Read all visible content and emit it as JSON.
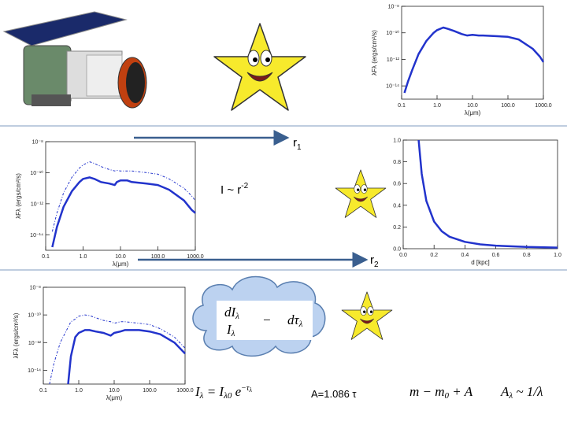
{
  "slide": {
    "r1": {
      "base": "r",
      "sub": "1"
    },
    "law": {
      "base": "I ~ r",
      "sup": "-2"
    },
    "r2": {
      "base": "r",
      "sub": "2"
    },
    "eq_transfer": {
      "num": "dI",
      "num_sub": "λ",
      "den": "I",
      "den_sub": "λ",
      "op": "−",
      "rhs": "dτ",
      "rhs_sub": "λ"
    },
    "eq_atten": {
      "lhs": "I",
      "lhs_sub": "λ",
      "mid": " = I",
      "mid_sub": "λ0",
      "exp_base": " e",
      "exp": "−τ",
      "exp_sub": "λ"
    },
    "eq_A": "A=1.086 τ",
    "eq_mag": {
      "base": "m − m",
      "sub": "0",
      "rest": " + A"
    },
    "eq_law": {
      "base": "A",
      "sub": "λ",
      "rest": " ~ 1/λ"
    }
  },
  "chart_data": [
    {
      "type": "line",
      "xscale": "log",
      "yscale": "log",
      "xlabel": "λ(μm)",
      "ylabel": "λFλ (ergs/cm²/s)",
      "xlim": [
        0.1,
        1000
      ],
      "xticks": [
        0.1,
        {
          "value": 1,
          "label": "1.0"
        },
        {
          "value": 10,
          "label": "10.0"
        },
        {
          "value": 100,
          "label": "100.0"
        },
        {
          "value": 1000,
          "label": "1000.0"
        }
      ],
      "ylim": [
        1e-15,
        1e-08
      ],
      "yticks": [
        {
          "value": 1e-08,
          "label": "10⁻⁸"
        },
        {
          "value": 1e-10,
          "label": "10⁻¹⁰"
        },
        {
          "value": 1e-12,
          "label": "10⁻¹²"
        },
        {
          "value": 1e-14,
          "label": "10⁻¹⁴"
        }
      ],
      "x": [
        0.12,
        0.15,
        0.2,
        0.3,
        0.5,
        0.8,
        1,
        1.5,
        2,
        3,
        5,
        7,
        10,
        15,
        20,
        50,
        100,
        200,
        500,
        800,
        1000
      ],
      "series": [
        {
          "color": "#2233cc",
          "dashed": false,
          "values": [
            3e-15,
            2e-14,
            1.6e-13,
            2.5e-12,
            2.5e-11,
            1e-10,
            1.6e-10,
            2.5e-10,
            2e-10,
            1.4e-10,
            8e-11,
            6.3e-11,
            7e-11,
            6.3e-11,
            6.3e-11,
            5.6e-11,
            5e-11,
            3.2e-11,
            6.3e-12,
            1.6e-12,
            6.3e-13
          ]
        }
      ]
    },
    {
      "type": "line",
      "xscale": "log",
      "yscale": "log",
      "xlabel": "λ(μm)",
      "ylabel": "λFλ (ergs/cm²/s)",
      "xlim": [
        0.1,
        1000
      ],
      "xticks": [
        0.1,
        {
          "value": 1,
          "label": "1.0"
        },
        {
          "value": 10,
          "label": "10.0"
        },
        {
          "value": 100,
          "label": "100.0"
        },
        {
          "value": 1000,
          "label": "1000.0"
        }
      ],
      "ylim": [
        1e-15,
        1e-08
      ],
      "yticks": [
        {
          "value": 1e-08,
          "label": "10⁻⁸"
        },
        {
          "value": 1e-10,
          "label": "10⁻¹⁰"
        },
        {
          "value": 1e-12,
          "label": "10⁻¹²"
        },
        {
          "value": 1e-14,
          "label": "10⁻¹⁴"
        }
      ],
      "x": [
        0.15,
        0.2,
        0.3,
        0.5,
        0.8,
        1,
        1.5,
        2,
        3,
        5,
        7,
        8,
        10,
        15,
        20,
        50,
        100,
        200,
        500,
        800,
        1000
      ],
      "series": [
        {
          "color": "#2233cc",
          "dashed": false,
          "values": [
            1.6e-15,
            3.2e-14,
            6.3e-13,
            6.3e-12,
            2.5e-11,
            4e-11,
            5e-11,
            4e-11,
            2.5e-11,
            2e-11,
            1.6e-11,
            2.5e-11,
            3.2e-11,
            3.2e-11,
            2.5e-11,
            2e-11,
            1.6e-11,
            8e-12,
            1.6e-12,
            4e-13,
            2.5e-13
          ]
        },
        {
          "color": "#2233cc",
          "dashed": true,
          "values": [
            1.6e-14,
            2.5e-13,
            5e-12,
            5e-11,
            2e-10,
            3.2e-10,
            5e-10,
            4e-10,
            2.5e-10,
            1.6e-10,
            1.3e-10,
            1.4e-10,
            1.3e-10,
            1.3e-10,
            1.3e-10,
            1e-10,
            8e-11,
            4e-11,
            1e-11,
            3.2e-12,
            1.6e-12
          ]
        }
      ]
    },
    {
      "type": "line",
      "xscale": "linear",
      "yscale": "linear",
      "xlabel": "d [kpc]",
      "xlim": [
        0,
        1
      ],
      "xticks": [
        {
          "value": 0,
          "label": "0.0"
        },
        0.2,
        0.4,
        0.6,
        0.8,
        {
          "value": 1,
          "label": "1.0"
        }
      ],
      "ylim": [
        0,
        1
      ],
      "yticks": [
        {
          "value": 0,
          "label": "0.0"
        },
        0.2,
        0.4,
        0.6,
        0.8,
        {
          "value": 1,
          "label": "1.0"
        }
      ],
      "x": [
        0.1,
        0.12,
        0.15,
        0.2,
        0.25,
        0.3,
        0.4,
        0.5,
        0.6,
        0.8,
        1.0
      ],
      "series": [
        {
          "color": "#2233cc",
          "dashed": false,
          "values": [
            1,
            0.69,
            0.44,
            0.25,
            0.16,
            0.11,
            0.063,
            0.04,
            0.028,
            0.016,
            0.01
          ]
        }
      ]
    },
    {
      "type": "line",
      "xscale": "log",
      "yscale": "log",
      "xlabel": "λ(μm)",
      "ylabel": "λFλ (ergs/cm²/s)",
      "xlim": [
        0.1,
        1000
      ],
      "xticks": [
        0.1,
        {
          "value": 1,
          "label": "1.0"
        },
        {
          "value": 10,
          "label": "10.0"
        },
        {
          "value": 100,
          "label": "100.0"
        },
        {
          "value": 1000,
          "label": "1000.0"
        }
      ],
      "ylim": [
        1e-15,
        1e-08
      ],
      "yticks": [
        {
          "value": 1e-08,
          "label": "10⁻⁸"
        },
        {
          "value": 1e-10,
          "label": "10⁻¹⁰"
        },
        {
          "value": 1e-12,
          "label": "10⁻¹²"
        },
        {
          "value": 1e-14,
          "label": "10⁻¹⁴"
        }
      ],
      "x": [
        0.15,
        0.2,
        0.3,
        0.5,
        0.6,
        0.8,
        1,
        1.5,
        2,
        3,
        5,
        8,
        10,
        15,
        20,
        50,
        100,
        200,
        500,
        1000
      ],
      "series": [
        {
          "color": "#2233cc",
          "dashed": false,
          "values": [
            null,
            null,
            null,
            1e-15,
            1e-13,
            2.5e-12,
            5e-12,
            8e-12,
            8e-12,
            6.3e-12,
            5e-12,
            3.2e-12,
            5e-12,
            6.3e-12,
            8e-12,
            8e-12,
            6.3e-12,
            4e-12,
            1e-12,
            1.6e-13
          ]
        },
        {
          "color": "#2233cc",
          "dashed": true,
          "values": [
            1e-15,
            3.2e-14,
            1e-12,
            1.3e-11,
            3.2e-11,
            5e-11,
            8e-11,
            1e-10,
            9e-11,
            6.3e-11,
            4e-11,
            3.2e-11,
            2.5e-11,
            3.2e-11,
            3.2e-11,
            2.5e-11,
            2e-11,
            1e-11,
            2.5e-12,
            4e-13
          ]
        }
      ]
    }
  ]
}
